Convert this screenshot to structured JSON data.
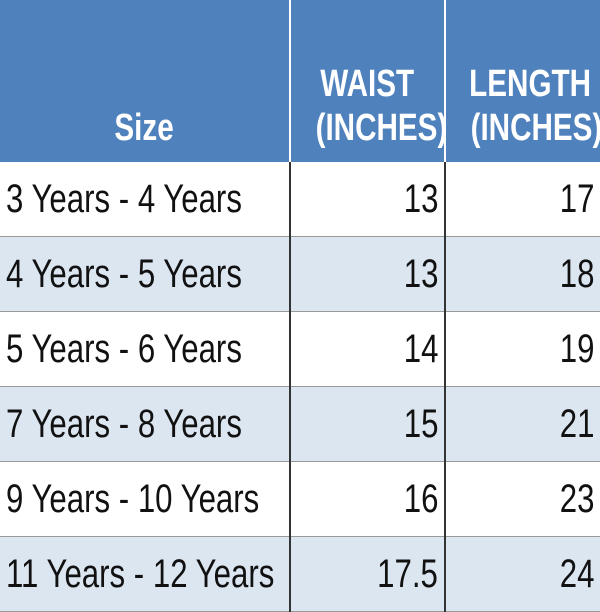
{
  "table": {
    "header": [
      [
        "Size"
      ],
      [
        "WAIST",
        "(INCHES)"
      ],
      [
        "LENGTH",
        "(INCHES)"
      ]
    ],
    "rows": [
      [
        "3 Years - 4 Years",
        13,
        17
      ],
      [
        "4 Years - 5 Years",
        13,
        18
      ],
      [
        "5 Years - 6 Years",
        14,
        19
      ],
      [
        "7 Years - 8 Years",
        15,
        21
      ],
      [
        "9 Years - 10 Years",
        16,
        23
      ],
      [
        "11 Years - 12 Years",
        17.5,
        24
      ]
    ]
  }
}
